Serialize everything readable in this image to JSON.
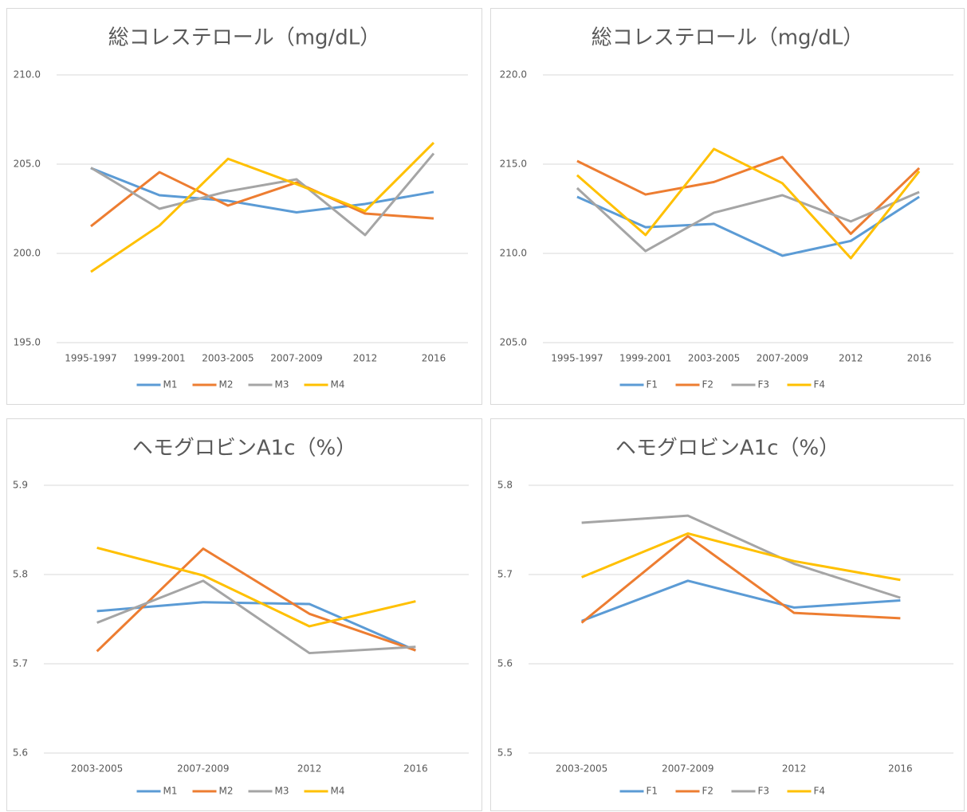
{
  "chart_data": [
    {
      "type": "line",
      "title": "総コレステロール（mg/dL）",
      "categories": [
        "1995-1997",
        "1999-2001",
        "2003-2005",
        "2007-2009",
        "2012",
        "2016"
      ],
      "series": [
        {
          "name": "M1",
          "color": "#5b9bd5",
          "values": [
            204.78,
            203.26,
            202.95,
            202.3,
            202.77,
            203.44
          ]
        },
        {
          "name": "M2",
          "color": "#ed7d31",
          "values": [
            201.52,
            204.55,
            202.68,
            203.97,
            202.23,
            201.96
          ]
        },
        {
          "name": "M3",
          "color": "#a5a5a5",
          "values": [
            204.8,
            202.5,
            203.48,
            204.15,
            201.03,
            205.6
          ]
        },
        {
          "name": "M4",
          "color": "#ffc000",
          "values": [
            198.97,
            201.56,
            205.3,
            203.88,
            202.37,
            206.2
          ]
        }
      ],
      "ylim": [
        195,
        210
      ],
      "yticks": [
        {
          "value": 195,
          "label": "195.0"
        },
        {
          "value": 200,
          "label": "200.0"
        },
        {
          "value": 205,
          "label": "205.0"
        },
        {
          "value": 210,
          "label": "210.0"
        }
      ],
      "grid": true,
      "legend": "bottom"
    },
    {
      "type": "line",
      "title": "総コレステロール（mg/dL）",
      "categories": [
        "1995-1997",
        "1999-2001",
        "2003-2005",
        "2007-2009",
        "2012",
        "2016"
      ],
      "series": [
        {
          "name": "F1",
          "color": "#5b9bd5",
          "values": [
            213.17,
            211.47,
            211.65,
            209.87,
            210.7,
            213.17
          ]
        },
        {
          "name": "F2",
          "color": "#ed7d31",
          "values": [
            215.18,
            213.3,
            214.0,
            215.4,
            211.1,
            214.78
          ]
        },
        {
          "name": "F3",
          "color": "#a5a5a5",
          "values": [
            213.66,
            210.13,
            212.28,
            213.26,
            211.79,
            213.44
          ]
        },
        {
          "name": "F4",
          "color": "#ffc000",
          "values": [
            214.38,
            211.03,
            215.85,
            213.93,
            209.73,
            214.6
          ]
        }
      ],
      "ylim": [
        205,
        220
      ],
      "yticks": [
        {
          "value": 205,
          "label": "205.0"
        },
        {
          "value": 210,
          "label": "210.0"
        },
        {
          "value": 215,
          "label": "215.0"
        },
        {
          "value": 220,
          "label": "220.0"
        }
      ],
      "grid": true,
      "legend": "bottom"
    },
    {
      "type": "line",
      "title": "ヘモグロビンA1c（%）",
      "categories": [
        "2003-2005",
        "2007-2009",
        "2012",
        "2016"
      ],
      "series": [
        {
          "name": "M1",
          "color": "#5b9bd5",
          "values": [
            5.759,
            5.769,
            5.767,
            5.715
          ]
        },
        {
          "name": "M2",
          "color": "#ed7d31",
          "values": [
            5.714,
            5.829,
            5.756,
            5.715
          ]
        },
        {
          "name": "M3",
          "color": "#a5a5a5",
          "values": [
            5.746,
            5.793,
            5.712,
            5.719
          ]
        },
        {
          "name": "M4",
          "color": "#ffc000",
          "values": [
            5.83,
            5.799,
            5.742,
            5.77
          ]
        }
      ],
      "ylim": [
        5.6,
        5.9
      ],
      "yticks": [
        5.6,
        5.7,
        5.8,
        5.9
      ],
      "grid": true,
      "legend": "bottom"
    },
    {
      "type": "line",
      "title": "ヘモグロビンA1c（%）",
      "categories": [
        "2003-2005",
        "2007-2009",
        "2012",
        "2016"
      ],
      "series": [
        {
          "name": "F1",
          "color": "#5b9bd5",
          "values": [
            5.648,
            5.693,
            5.663,
            5.671
          ]
        },
        {
          "name": "F2",
          "color": "#ed7d31",
          "values": [
            5.646,
            5.743,
            5.657,
            5.651
          ]
        },
        {
          "name": "F3",
          "color": "#a5a5a5",
          "values": [
            5.758,
            5.766,
            5.712,
            5.674
          ]
        },
        {
          "name": "F4",
          "color": "#ffc000",
          "values": [
            5.697,
            5.746,
            5.715,
            5.694
          ]
        }
      ],
      "ylim": [
        5.5,
        5.8
      ],
      "yticks": [
        5.5,
        5.6,
        5.7,
        5.8
      ],
      "grid": true,
      "legend": "bottom"
    }
  ]
}
